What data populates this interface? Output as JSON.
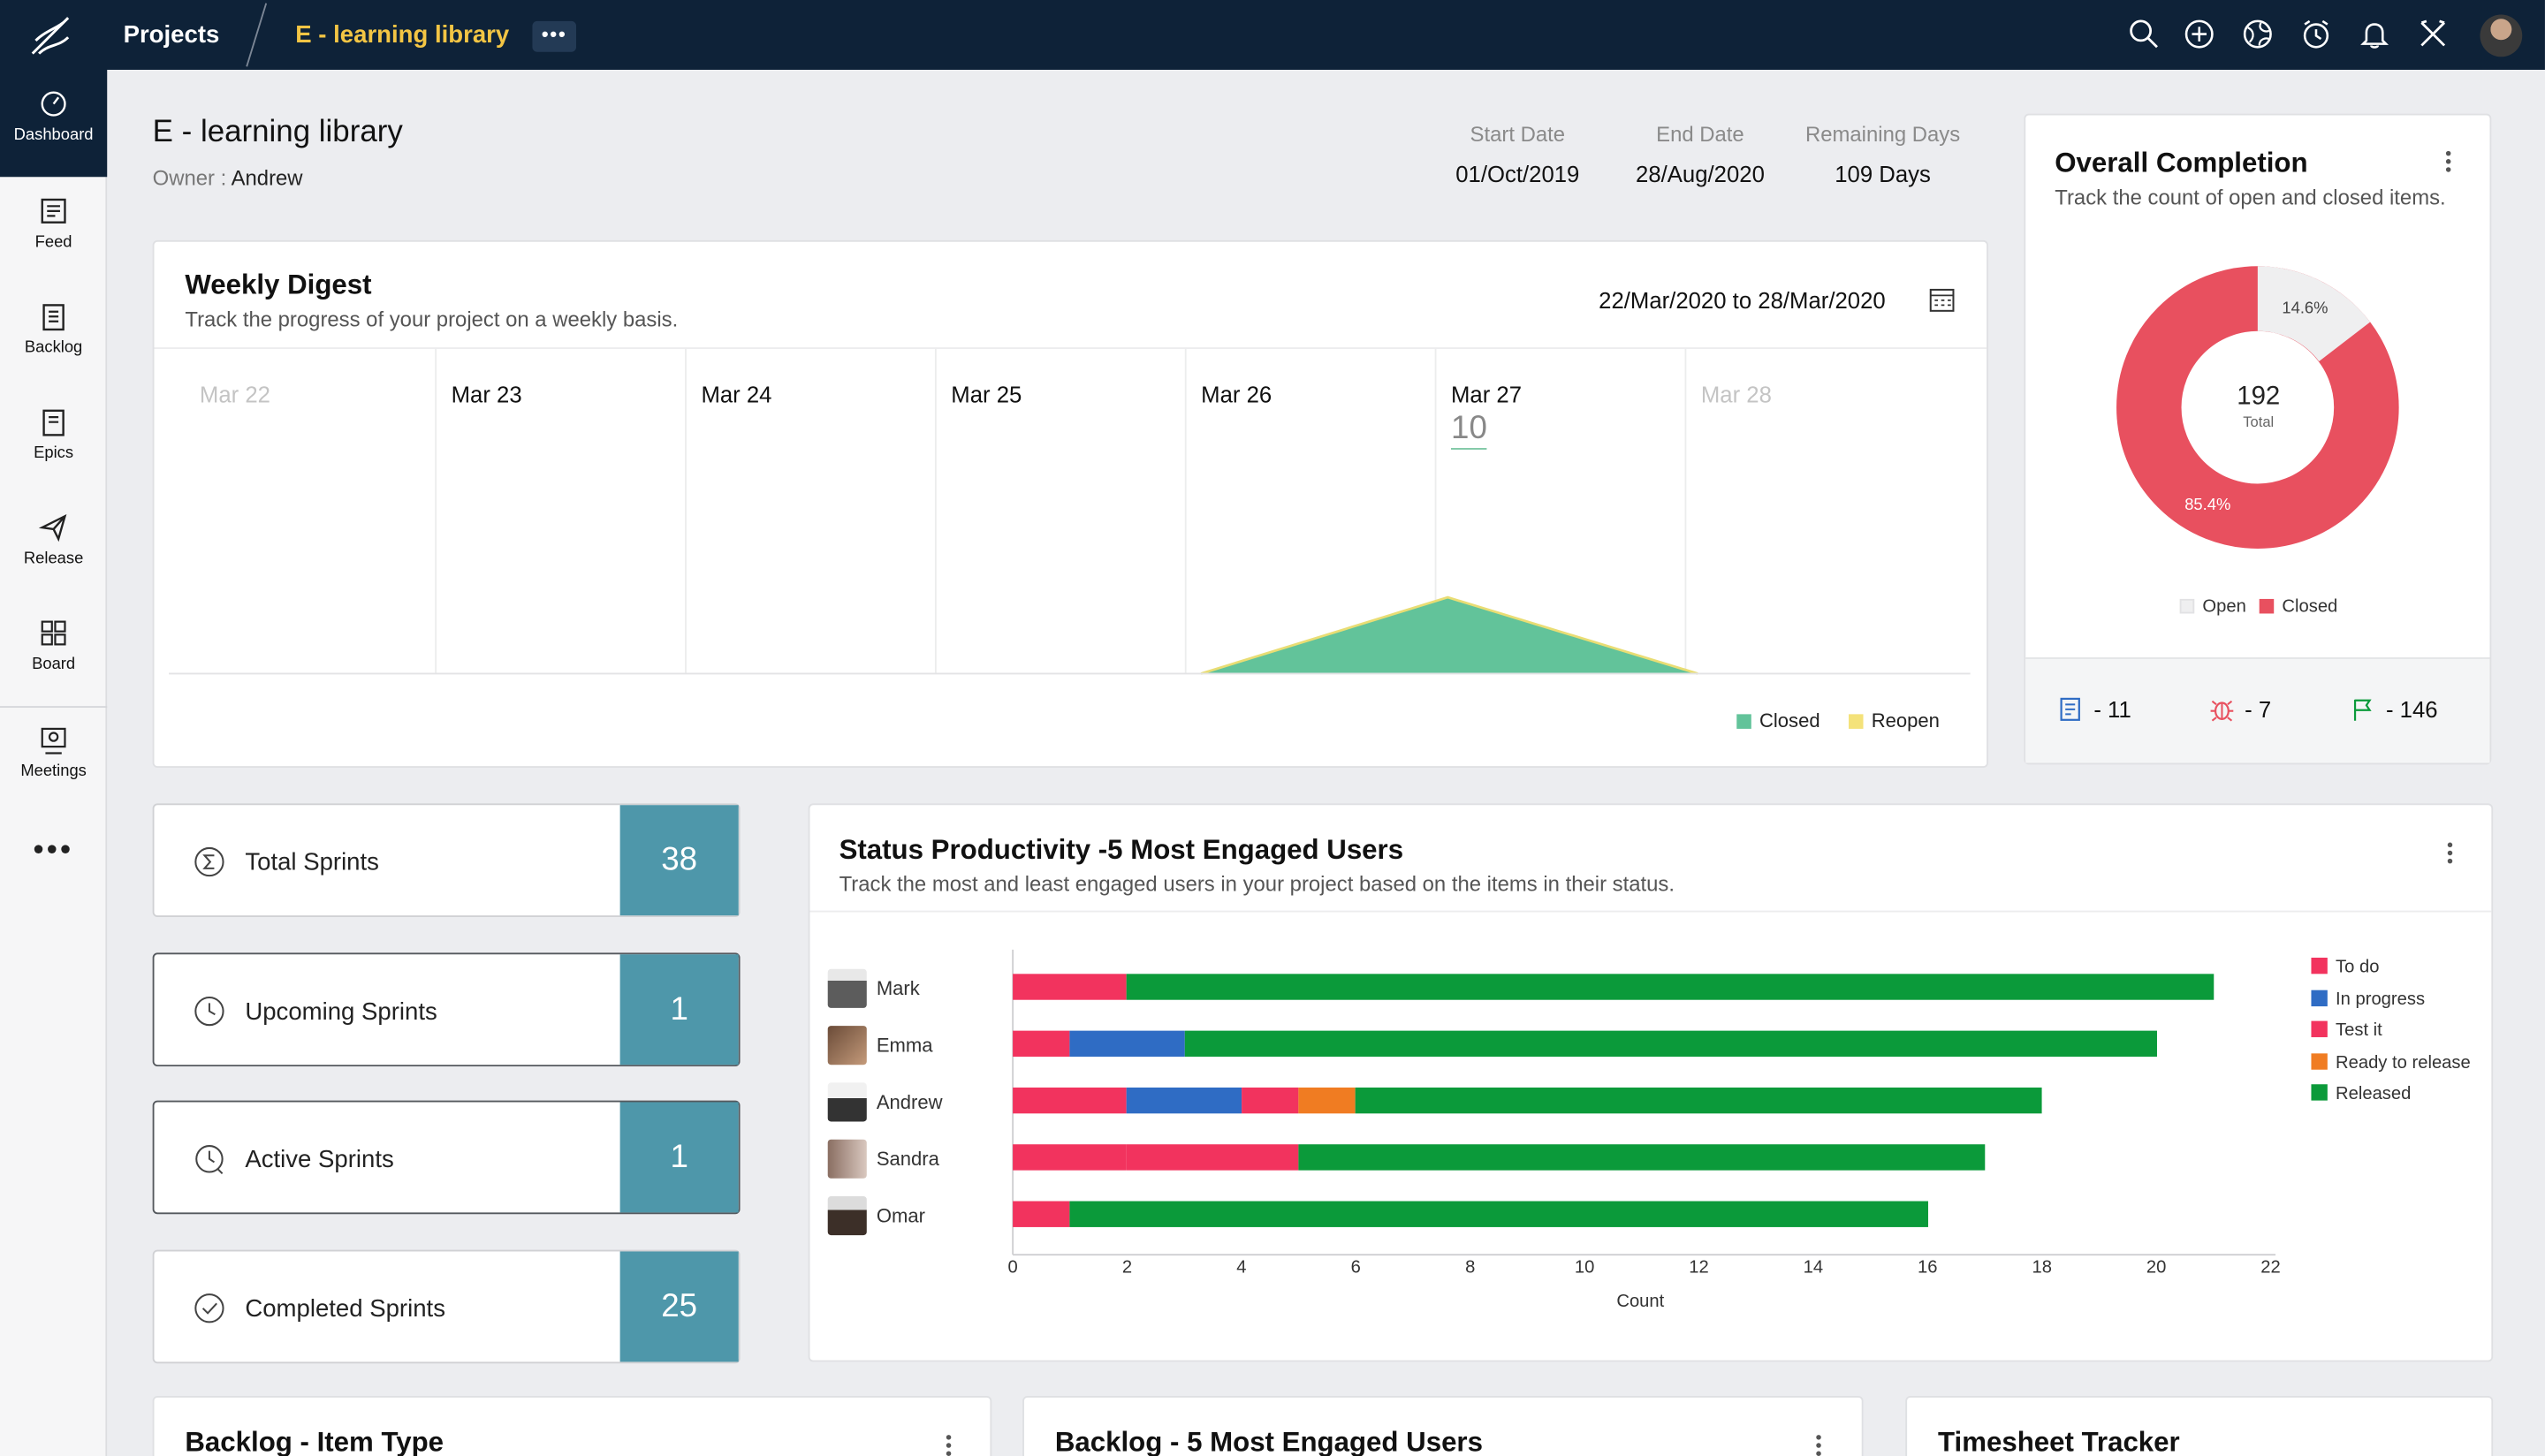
{
  "topbar": {
    "projects": "Projects",
    "breadcrumb": "E - learning library",
    "more": "•••"
  },
  "sidebar": {
    "items": [
      {
        "label": "Dashboard",
        "icon": "dashboard-icon"
      },
      {
        "label": "Feed",
        "icon": "feed-icon"
      },
      {
        "label": "Backlog",
        "icon": "backlog-icon"
      },
      {
        "label": "Epics",
        "icon": "epics-icon"
      },
      {
        "label": "Release",
        "icon": "release-icon"
      },
      {
        "label": "Board",
        "icon": "board-icon"
      },
      {
        "label": "Meetings",
        "icon": "meetings-icon"
      }
    ],
    "more": "•••"
  },
  "project": {
    "title": "E - learning library",
    "owner_label": "Owner : ",
    "owner": "Andrew",
    "start_label": "Start Date",
    "start": "01/Oct/2019",
    "end_label": "End Date",
    "end": "28/Aug/2020",
    "remaining_label": "Remaining Days",
    "remaining": "109 Days"
  },
  "weekly": {
    "title": "Weekly Digest",
    "subtitle": "Track the progress of your project on a weekly basis.",
    "range_from": "22/Mar/2020",
    "range_to_word": "to",
    "range_to": "28/Mar/2020",
    "days": [
      "Mar 22",
      "Mar 23",
      "Mar 24",
      "Mar 25",
      "Mar 26",
      "Mar 27",
      "Mar 28"
    ],
    "highlight_value": "10",
    "legend": [
      {
        "label": "Closed",
        "color": "#62c39a"
      },
      {
        "label": "Reopen",
        "color": "#f4e27a"
      }
    ]
  },
  "completion": {
    "title": "Overall Completion",
    "subtitle": "Track the count of open and closed items.",
    "total": "192",
    "total_label": "Total",
    "open_pct": "14.6%",
    "closed_pct": "85.4%",
    "legend_open": "Open",
    "legend_closed": "Closed",
    "stat_tasks": "- 11",
    "stat_bugs": "- 7",
    "stat_milestones": "- 146",
    "colors": {
      "open": "#efeff0",
      "closed": "#e8505f"
    }
  },
  "sprints": [
    {
      "label": "Total Sprints",
      "value": "38",
      "icon": "sigma-icon"
    },
    {
      "label": "Upcoming Sprints",
      "value": "1",
      "icon": "clock-icon"
    },
    {
      "label": "Active Sprints",
      "value": "1",
      "icon": "active-clock-icon"
    },
    {
      "label": "Completed Sprints",
      "value": "25",
      "icon": "check-circle-icon"
    }
  ],
  "productivity": {
    "title": "Status Productivity -5 Most Engaged Users",
    "subtitle": "Track the most and least engaged users in your project based on the items in their status.",
    "xlabel": "Count"
  },
  "chart_data": {
    "type": "bar",
    "orientation": "horizontal",
    "stacked": true,
    "categories": [
      "Mark",
      "Emma",
      "Andrew",
      "Sandra",
      "Omar"
    ],
    "series": [
      {
        "name": "To do",
        "color": "#f2335e",
        "values": [
          2,
          1,
          2,
          2,
          1
        ]
      },
      {
        "name": "In progress",
        "color": "#2f6cc4",
        "values": [
          0,
          2,
          2,
          0,
          0
        ]
      },
      {
        "name": "Test it",
        "color": "#f2335e",
        "values": [
          0,
          0,
          1,
          3,
          0
        ]
      },
      {
        "name": "Ready to release",
        "color": "#f07c22",
        "values": [
          0,
          0,
          1,
          0,
          0
        ]
      },
      {
        "name": "Released",
        "color": "#0b9a3a",
        "values": [
          19,
          17,
          12,
          12,
          15
        ]
      }
    ],
    "xlim": [
      0,
      22
    ],
    "xticks": [
      0,
      2,
      4,
      6,
      8,
      10,
      12,
      14,
      16,
      18,
      20,
      22
    ],
    "xlabel": "Count",
    "legend": "right"
  },
  "bottom": {
    "backlog_type": "Backlog - Item Type",
    "backlog_users": "Backlog - 5 Most Engaged Users",
    "timesheet": "Timesheet Tracker"
  }
}
